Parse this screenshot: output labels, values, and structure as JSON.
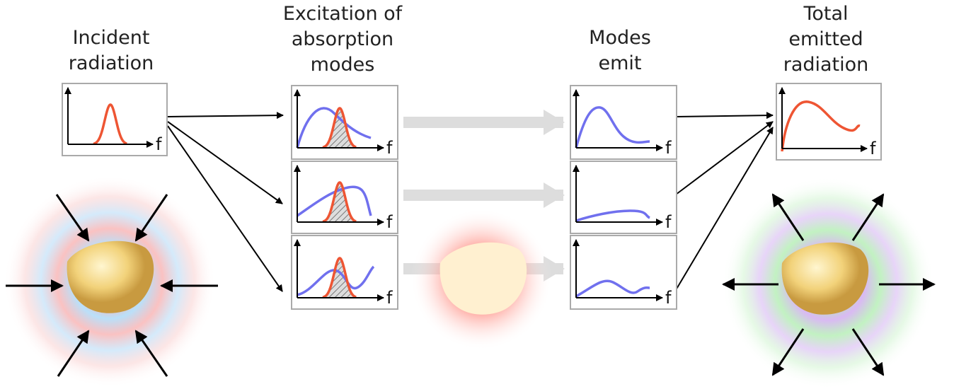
{
  "columns": [
    {
      "title": [
        "Incident",
        "radiation"
      ],
      "panels": [
        {
          "axis_label": "f"
        }
      ]
    },
    {
      "title": [
        "Excitation of",
        "absorption",
        "modes"
      ],
      "panels": [
        {
          "axis_label": "f"
        },
        {
          "axis_label": "f"
        },
        {
          "axis_label": "f"
        }
      ]
    },
    {
      "title": [
        "Modes",
        "emit"
      ],
      "panels": [
        {
          "axis_label": "f"
        },
        {
          "axis_label": "f"
        },
        {
          "axis_label": "f"
        }
      ]
    },
    {
      "title": [
        "Total",
        "emitted",
        "radiation"
      ],
      "panels": [
        {
          "axis_label": "f"
        }
      ]
    }
  ]
}
